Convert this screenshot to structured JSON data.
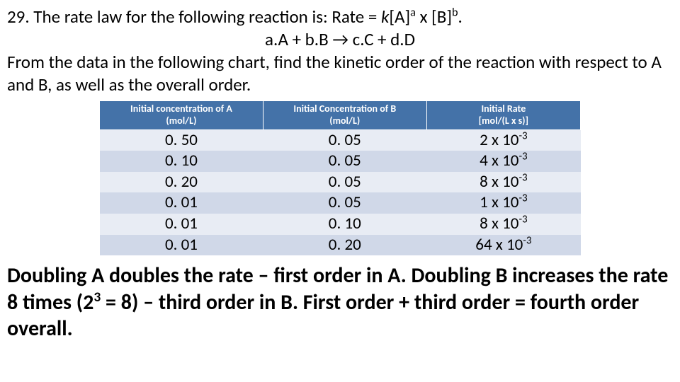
{
  "question": {
    "line1_prefix": "29.  The rate law for the following reaction is:  Rate = ",
    "k": "k",
    "line1_mid1": "[A]",
    "sup_a": "a",
    "line1_mid2": " x [B]",
    "sup_b": "b",
    "line1_suffix": ".",
    "line2": "a.A + b.B → c.C + d.D",
    "line3": "From the data in the following chart, find the kinetic order of the reaction with respect to A and B, as well as the overall order."
  },
  "table": {
    "headers": {
      "colA_l1": "Initial concentration of A",
      "colA_l2": "(mol/L)",
      "colB_l1": "Initial Concentration of B",
      "colB_l2": "(mol/L)",
      "colR_l1": "Initial Rate",
      "colR_l2": "[mol/(L x s)]"
    },
    "rows": [
      {
        "a": "0. 50",
        "b": "0. 05",
        "r_coef": "2 x 10",
        "r_exp": "-3"
      },
      {
        "a": "0. 10",
        "b": "0. 05",
        "r_coef": "4 x 10",
        "r_exp": "-3"
      },
      {
        "a": "0. 20",
        "b": "0. 05",
        "r_coef": "8 x 10",
        "r_exp": "-3"
      },
      {
        "a": "0. 01",
        "b": "0. 05",
        "r_coef": "1 x 10",
        "r_exp": "-3"
      },
      {
        "a": "0. 01",
        "b": "0. 10",
        "r_coef": "8 x 10",
        "r_exp": "-3"
      },
      {
        "a": "0. 01",
        "b": "0. 20",
        "r_coef": "64 x 10",
        "r_exp": "-3"
      }
    ],
    "header_bg": "#4472a8",
    "header_fg": "#ffffff",
    "row_bg_odd": "#e8ecf4",
    "row_bg_even": "#d0d8e8",
    "header_fontsize": 14,
    "cell_fontsize": 23
  },
  "answer": {
    "part1": "Doubling A doubles the rate – first order in A.  Doubling B increases the rate 8 times (2",
    "exp3": "3",
    "part2": " = 8) – third order in B.  First order + third order = fourth order overall."
  },
  "colors": {
    "background": "#ffffff",
    "text": "#000000"
  }
}
